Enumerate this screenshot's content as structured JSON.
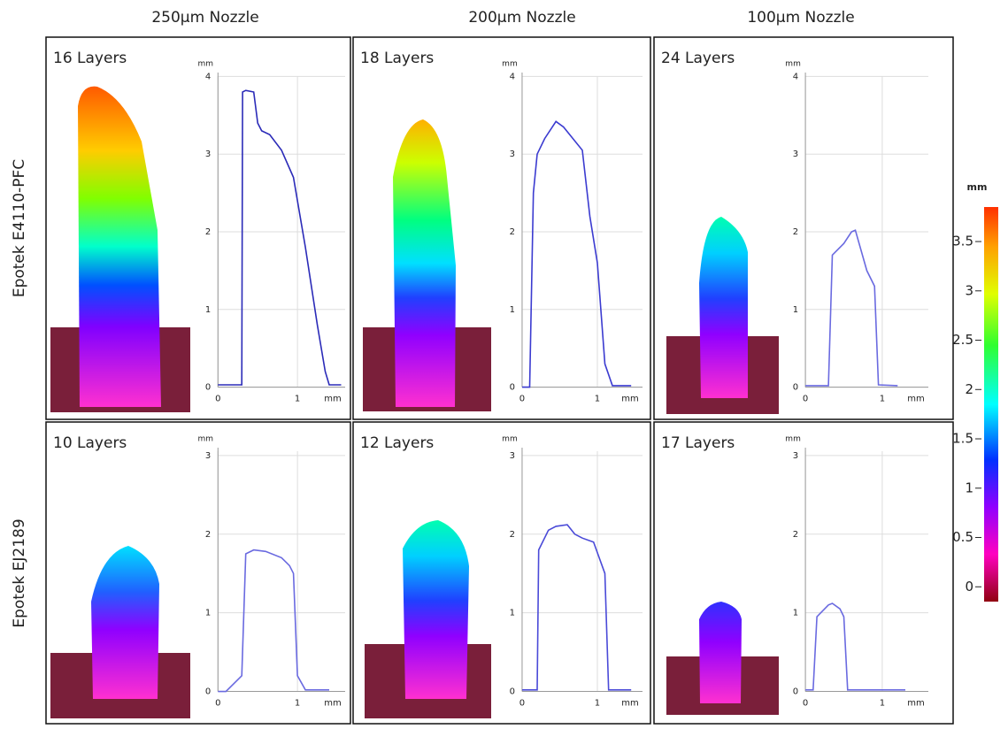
{
  "columns": [
    "250µm Nozzle",
    "200µm Nozzle",
    "100µm Nozzle"
  ],
  "rows": [
    "Epotek E4110-PFC",
    "Epotek EJ2189"
  ],
  "colorbar": {
    "label": "mm",
    "lim": [
      -0.15,
      3.85
    ],
    "ticks": [
      3.5,
      3,
      2.5,
      2,
      1.5,
      1,
      0.5,
      0
    ]
  },
  "chart_data": [
    {
      "type": "line",
      "title": "16 Layers",
      "xlabel": "mm",
      "ylabel": "mm",
      "color": "#2b2bb8",
      "grid": true,
      "x": [
        0,
        0.3,
        0.31,
        0.35,
        0.45,
        0.5,
        0.55,
        0.65,
        0.8,
        0.95,
        1.1,
        1.25,
        1.35,
        1.4,
        1.55
      ],
      "values": [
        0.03,
        0.03,
        3.8,
        3.82,
        3.8,
        3.4,
        3.3,
        3.25,
        3.05,
        2.7,
        1.8,
        0.8,
        0.2,
        0.03,
        0.03
      ],
      "xlim": [
        -0.07,
        1.6
      ],
      "ylim": [
        -0.05,
        4.05
      ],
      "xticks": [
        0,
        1
      ],
      "yticks": [
        0,
        1,
        2,
        3,
        4
      ]
    },
    {
      "type": "line",
      "title": "18 Layers",
      "xlabel": "mm",
      "ylabel": "mm",
      "color": "#3b3bd0",
      "grid": true,
      "x": [
        0,
        0.1,
        0.15,
        0.2,
        0.3,
        0.45,
        0.55,
        0.8,
        0.9,
        1,
        1.1,
        1.2,
        1.45
      ],
      "values": [
        0,
        0,
        2.5,
        3.0,
        3.2,
        3.42,
        3.35,
        3.05,
        2.2,
        1.6,
        0.3,
        0.02,
        0.02
      ],
      "xlim": [
        -0.07,
        1.6
      ],
      "ylim": [
        -0.05,
        4.05
      ],
      "xticks": [
        0,
        1
      ],
      "yticks": [
        0,
        1,
        2,
        3,
        4
      ]
    },
    {
      "type": "line",
      "title": "24 Layers",
      "xlabel": "mm",
      "ylabel": "mm",
      "color": "#6a6ae0",
      "grid": true,
      "x": [
        0,
        0.3,
        0.35,
        0.5,
        0.6,
        0.65,
        0.8,
        0.9,
        0.95,
        1.2
      ],
      "values": [
        0.02,
        0.02,
        1.7,
        1.85,
        2.0,
        2.02,
        1.5,
        1.3,
        0.03,
        0.02
      ],
      "xlim": [
        -0.07,
        1.6
      ],
      "ylim": [
        -0.05,
        4.05
      ],
      "xticks": [
        0,
        1
      ],
      "yticks": [
        0,
        1,
        2,
        3,
        4
      ]
    },
    {
      "type": "line",
      "title": "10 Layers",
      "xlabel": "mm",
      "ylabel": "mm",
      "color": "#6a6ae0",
      "grid": true,
      "x": [
        0,
        0.1,
        0.3,
        0.35,
        0.45,
        0.6,
        0.8,
        0.9,
        0.95,
        1.0,
        1.1,
        1.4
      ],
      "values": [
        0,
        0,
        0.2,
        1.75,
        1.8,
        1.78,
        1.7,
        1.6,
        1.5,
        0.2,
        0.02,
        0.02
      ],
      "xlim": [
        -0.07,
        1.6
      ],
      "ylim": [
        -0.05,
        3.1
      ],
      "xticks": [
        0,
        1
      ],
      "yticks": [
        0,
        1,
        2,
        3
      ]
    },
    {
      "type": "line",
      "title": "12 Layers",
      "xlabel": "mm",
      "ylabel": "mm",
      "color": "#4a4ad8",
      "grid": true,
      "x": [
        0,
        0.2,
        0.22,
        0.35,
        0.45,
        0.6,
        0.7,
        0.8,
        0.95,
        1.1,
        1.15,
        1.45
      ],
      "values": [
        0.02,
        0.02,
        1.8,
        2.05,
        2.1,
        2.12,
        2.0,
        1.95,
        1.9,
        1.5,
        0.02,
        0.02
      ],
      "xlim": [
        -0.07,
        1.6
      ],
      "ylim": [
        -0.05,
        3.1
      ],
      "xticks": [
        0,
        1
      ],
      "yticks": [
        0,
        1,
        2,
        3
      ]
    },
    {
      "type": "line",
      "title": "17 Layers",
      "xlabel": "mm",
      "ylabel": "mm",
      "color": "#6a6ae0",
      "grid": true,
      "x": [
        0,
        0.1,
        0.15,
        0.3,
        0.35,
        0.45,
        0.5,
        0.55,
        0.6,
        1.3
      ],
      "values": [
        0.02,
        0.02,
        0.95,
        1.1,
        1.12,
        1.05,
        0.95,
        0.02,
        0.02,
        0.02
      ],
      "xlim": [
        -0.07,
        1.6
      ],
      "ylim": [
        -0.05,
        3.1
      ],
      "xticks": [
        0,
        1
      ],
      "yticks": [
        0,
        1,
        2,
        3
      ]
    }
  ]
}
